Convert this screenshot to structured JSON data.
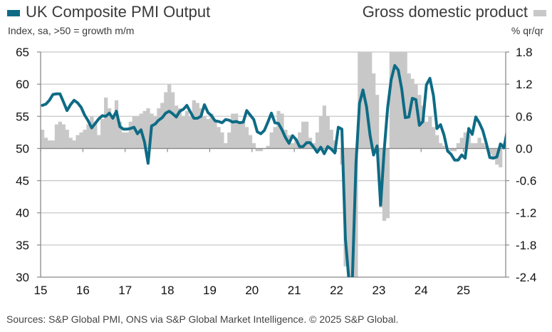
{
  "chart_data": {
    "type": "bar+line",
    "title_left": "UK Composite PMI Output",
    "subtitle_left": "Index, sa, >50 = growth m/m",
    "title_right": "Gross domestic product",
    "subtitle_right": "% qr/qr",
    "source": "Sources: S&P Global PMI, ONS via S&P Global Market Intelligence. © 2025 S&P Global.",
    "colors": {
      "pmi": "#0e6b85",
      "gdp": "#c8c8c8",
      "grid": "#c8c8c8",
      "axis": "#8a8a8a"
    },
    "left_axis": {
      "label": "Index",
      "ylim": [
        30,
        65
      ],
      "ticks": [
        "30",
        "35",
        "40",
        "45",
        "50",
        "55",
        "60",
        "65"
      ]
    },
    "right_axis": {
      "label": "% qr/qr",
      "ylim": [
        -2.4,
        1.8
      ],
      "ticks": [
        "-2.4",
        "-1.8",
        "-1.2",
        "-0.6",
        "0.0",
        "0.6",
        "1.2",
        "1.8"
      ]
    },
    "x_axis": {
      "start": "2015-01",
      "ticks": [
        "15",
        "16",
        "17",
        "18",
        "19",
        "20",
        "21",
        "22",
        "23",
        "24",
        "25"
      ]
    },
    "legend": [
      {
        "name": "UK Composite PMI Output",
        "position": "top-left"
      },
      {
        "name": "Gross domestic product",
        "position": "top-right"
      }
    ],
    "series": [
      {
        "name": "UK Composite PMI Output",
        "axis": "left",
        "kind": "line",
        "frequency": "monthly",
        "values": [
          56.7,
          56.9,
          57.5,
          58.4,
          58.5,
          58.5,
          57.2,
          55.9,
          56.8,
          57.5,
          57.1,
          56.4,
          55.2,
          54.3,
          53.2,
          53.9,
          54.6,
          55.1,
          55.0,
          55.5,
          54.7,
          55.8,
          53.4,
          53.0,
          53.0,
          53.1,
          53.3,
          52.3,
          52.9,
          51.0,
          47.7,
          53.5,
          53.8,
          54.4,
          54.8,
          55.5,
          55.8,
          55.4,
          54.9,
          55.8,
          56.1,
          56.7,
          55.7,
          54.7,
          54.7,
          55.0,
          56.8,
          55.6,
          55.1,
          54.3,
          54.2,
          54.0,
          54.5,
          54.4,
          54.1,
          54.2,
          54.0,
          54.1,
          55.9,
          55.2,
          54.5,
          52.6,
          52.3,
          52.8,
          54.1,
          55.5,
          54.0,
          53.9,
          52.9,
          51.7,
          50.8,
          52.0,
          51.4,
          50.3,
          50.3,
          50.9,
          50.9,
          50.2,
          49.4,
          50.2,
          49.2,
          50.3,
          49.9,
          49.3,
          53.3,
          53.0,
          36.0,
          13.8,
          30.0,
          47.7,
          57.0,
          59.1,
          56.5,
          52.1,
          49.0,
          50.4,
          41.2,
          49.6,
          56.4,
          60.7,
          62.9,
          62.2,
          59.2,
          54.8,
          54.9,
          57.8,
          57.6,
          53.6,
          54.2,
          59.9,
          60.9,
          58.2,
          53.1,
          53.7,
          52.1,
          49.6,
          49.1,
          48.2,
          48.2,
          49.0,
          48.5,
          53.1,
          52.2,
          54.9,
          54.0,
          52.8,
          50.8,
          48.6,
          48.5,
          48.7,
          50.7,
          50.1,
          52.9,
          53.0,
          52.8,
          54.1,
          53.0,
          52.6,
          52.8,
          53.8,
          52.6,
          51.8,
          50.9,
          50.4,
          50.6,
          50.5,
          51.5,
          48.5,
          50.3,
          52.0,
          51.5,
          53.5,
          50.1,
          52.2,
          51.1
        ]
      },
      {
        "name": "Gross domestic product",
        "axis": "right",
        "kind": "bar",
        "frequency": "monthly rolling 3m/3m",
        "values": [
          0.35,
          0.2,
          0.15,
          0.15,
          0.45,
          0.5,
          0.45,
          0.35,
          0.2,
          0.15,
          0.25,
          0.3,
          0.35,
          0.45,
          0.6,
          0.5,
          0.25,
          0.55,
          0.95,
          0.75,
          0.6,
          0.9,
          0.5,
          0.3,
          0.3,
          0.5,
          0.6,
          0.6,
          0.65,
          0.7,
          0.75,
          0.65,
          0.6,
          0.75,
          0.85,
          1.05,
          1.2,
          1.05,
          0.8,
          0.75,
          0.6,
          0.7,
          0.6,
          0.9,
          0.85,
          0.75,
          0.6,
          0.55,
          0.65,
          0.5,
          0.4,
          0.3,
          0.1,
          0.3,
          0.65,
          0.65,
          0.5,
          0.5,
          0.4,
          0.25,
          0.1,
          -0.05,
          -0.05,
          0.0,
          0.05,
          0.3,
          0.4,
          0.7,
          0.65,
          0.35,
          0.25,
          0.1,
          0.15,
          0.3,
          0.5,
          0.5,
          0.2,
          0.1,
          0.3,
          0.6,
          0.8,
          0.6,
          0.35,
          0.15,
          0.0,
          -0.3,
          -2.2,
          -2.4,
          -2.4,
          -2.4,
          1.8,
          1.8,
          1.8,
          1.8,
          1.4,
          1.0,
          -1.1,
          -1.35,
          -1.3,
          1.8,
          1.8,
          1.8,
          1.8,
          1.8,
          1.4,
          1.3,
          1.2,
          1.0,
          0.8,
          0.5,
          0.6,
          0.4,
          0.25,
          0.1,
          0.05,
          0.0,
          -0.05,
          -0.05,
          0.1,
          0.2,
          0.3,
          0.25,
          0.1,
          0.1,
          0.2,
          0.1,
          0.05,
          -0.1,
          -0.2,
          -0.3,
          -0.35,
          0.1,
          0.6,
          0.75,
          0.8,
          0.95,
          0.6,
          0.45,
          0.15,
          0.15,
          0.15,
          0.1,
          0.0,
          0.15,
          0.35,
          0.55,
          0.65,
          0.65,
          0.45,
          0.3,
          0.2,
          0.1,
          0.1,
          0.1,
          0.05
        ]
      }
    ]
  }
}
